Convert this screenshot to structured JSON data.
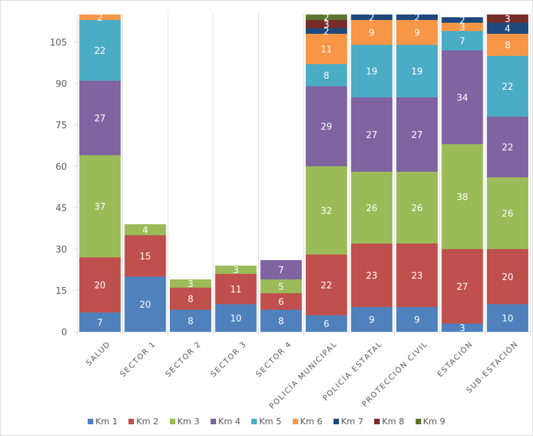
{
  "chart_data": {
    "type": "bar",
    "stacked": true,
    "title": "",
    "xlabel": "",
    "ylabel": "",
    "ylim": [
      0,
      115
    ],
    "yticks": [
      0,
      15,
      30,
      45,
      60,
      75,
      90,
      105
    ],
    "grid": "vertical category separators",
    "legend_position": "bottom",
    "categories": [
      "SALUD",
      "SECTOR 1",
      "SECTOR 2",
      "SECTOR 3",
      "SECTOR 4",
      "POLICÍA MUNICIPAL",
      "POLICÍA ESTATAL",
      "PROTECCIÓN CIVIL",
      "ESTACIÓN",
      "SUB-ESTACIÓN"
    ],
    "series": [
      {
        "name": "Km 1",
        "color": "#4f81bd",
        "values": [
          7,
          20,
          8,
          10,
          8,
          6,
          9,
          9,
          3,
          10
        ]
      },
      {
        "name": "Km 2",
        "color": "#c0504d",
        "values": [
          20,
          15,
          8,
          11,
          6,
          22,
          23,
          23,
          27,
          20
        ]
      },
      {
        "name": "Km 3",
        "color": "#9bbb59",
        "values": [
          37,
          4,
          3,
          3,
          5,
          32,
          26,
          26,
          38,
          26
        ]
      },
      {
        "name": "Km 4",
        "color": "#8064a2",
        "values": [
          27,
          0,
          0,
          0,
          7,
          29,
          27,
          27,
          34,
          22
        ]
      },
      {
        "name": "Km 5",
        "color": "#4bacc6",
        "values": [
          22,
          0,
          0,
          0,
          0,
          8,
          19,
          19,
          7,
          22
        ]
      },
      {
        "name": "Km 6",
        "color": "#f79646",
        "values": [
          2,
          0,
          0,
          0,
          0,
          11,
          9,
          9,
          3,
          8
        ]
      },
      {
        "name": "Km 7",
        "color": "#1f497d",
        "values": [
          0,
          0,
          0,
          0,
          0,
          2,
          2,
          2,
          2,
          4
        ]
      },
      {
        "name": "Km 8",
        "color": "#772c2a",
        "values": [
          0,
          0,
          0,
          0,
          0,
          3,
          0,
          0,
          0,
          3
        ]
      },
      {
        "name": "Km 9",
        "color": "#5f7530",
        "values": [
          0,
          0,
          0,
          0,
          0,
          2,
          0,
          0,
          0,
          0
        ]
      }
    ]
  }
}
